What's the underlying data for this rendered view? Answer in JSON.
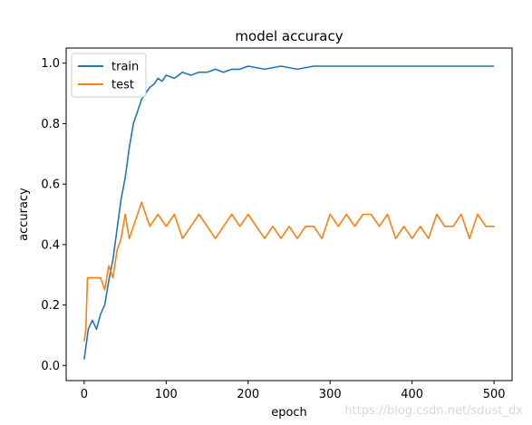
{
  "chart_data": {
    "type": "line",
    "title": "model accuracy",
    "xlabel": "epoch",
    "ylabel": "accuracy",
    "xlim": [
      -22,
      522
    ],
    "ylim": [
      -0.05,
      1.05
    ],
    "xticks": [
      0,
      100,
      200,
      300,
      400,
      500
    ],
    "yticks": [
      0.0,
      0.2,
      0.4,
      0.6,
      0.8,
      1.0
    ],
    "ytick_labels": [
      "0.0",
      "0.2",
      "0.4",
      "0.6",
      "0.8",
      "1.0"
    ],
    "legend_position": "upper-left",
    "series": [
      {
        "name": "train",
        "color": "#1f77b4",
        "x": [
          0,
          5,
          10,
          15,
          20,
          25,
          30,
          35,
          40,
          45,
          50,
          55,
          60,
          65,
          70,
          75,
          80,
          85,
          90,
          95,
          100,
          110,
          120,
          130,
          140,
          150,
          160,
          170,
          180,
          190,
          200,
          220,
          240,
          260,
          280,
          300,
          320,
          340,
          360,
          380,
          400,
          420,
          440,
          460,
          480,
          500
        ],
        "y": [
          0.02,
          0.12,
          0.15,
          0.12,
          0.17,
          0.2,
          0.28,
          0.35,
          0.45,
          0.55,
          0.62,
          0.72,
          0.8,
          0.84,
          0.88,
          0.9,
          0.92,
          0.93,
          0.95,
          0.94,
          0.96,
          0.95,
          0.97,
          0.96,
          0.97,
          0.97,
          0.98,
          0.97,
          0.98,
          0.98,
          0.99,
          0.98,
          0.99,
          0.98,
          0.99,
          0.99,
          0.99,
          0.99,
          0.99,
          0.99,
          0.99,
          0.99,
          0.99,
          0.99,
          0.99,
          0.99
        ]
      },
      {
        "name": "test",
        "color": "#ff7f0e",
        "x": [
          0,
          2,
          4,
          10,
          20,
          25,
          30,
          35,
          40,
          45,
          50,
          55,
          60,
          65,
          70,
          75,
          80,
          90,
          100,
          110,
          120,
          130,
          140,
          150,
          160,
          170,
          180,
          190,
          200,
          210,
          220,
          230,
          240,
          250,
          260,
          270,
          280,
          290,
          300,
          310,
          320,
          330,
          340,
          350,
          360,
          370,
          380,
          390,
          400,
          410,
          420,
          430,
          440,
          450,
          460,
          470,
          480,
          490,
          500
        ],
        "y": [
          0.08,
          0.12,
          0.29,
          0.29,
          0.29,
          0.25,
          0.33,
          0.29,
          0.38,
          0.42,
          0.5,
          0.42,
          0.46,
          0.5,
          0.54,
          0.5,
          0.46,
          0.5,
          0.46,
          0.5,
          0.42,
          0.46,
          0.5,
          0.46,
          0.42,
          0.46,
          0.5,
          0.46,
          0.5,
          0.46,
          0.42,
          0.46,
          0.42,
          0.46,
          0.42,
          0.46,
          0.46,
          0.42,
          0.5,
          0.46,
          0.5,
          0.46,
          0.5,
          0.5,
          0.46,
          0.5,
          0.42,
          0.46,
          0.42,
          0.46,
          0.42,
          0.5,
          0.46,
          0.46,
          0.5,
          0.42,
          0.5,
          0.46,
          0.46
        ]
      }
    ]
  },
  "watermark": "https://blog.csdn.net/sdust_dx"
}
